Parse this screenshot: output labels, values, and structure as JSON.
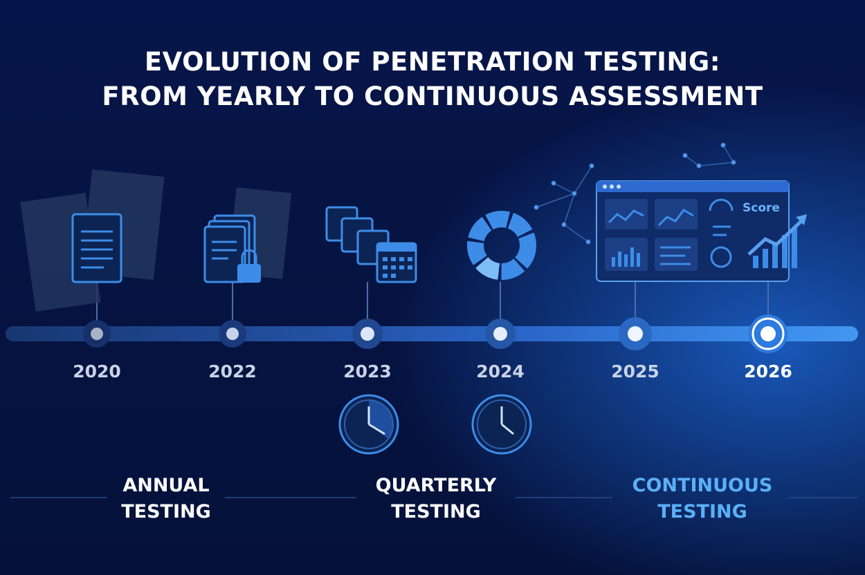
{
  "title": [
    "EVOLUTION OF PENETRATION TESTING:",
    "FROM YEARLY TO CONTINUOUS ASSESSMENT"
  ],
  "timeline": {
    "years": [
      "2020",
      "2022",
      "2023",
      "2024",
      "2025",
      "2026"
    ]
  },
  "dashboard": {
    "label": "Score"
  },
  "phases": [
    {
      "lines": [
        "ANNUAL",
        "TESTING"
      ]
    },
    {
      "lines": [
        "QUARTERLY",
        "TESTING"
      ]
    },
    {
      "lines": [
        "CONTINUOUS",
        "TESTING"
      ]
    }
  ]
}
